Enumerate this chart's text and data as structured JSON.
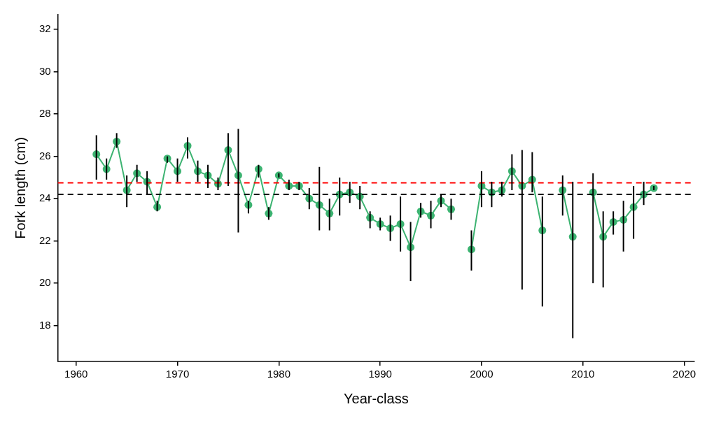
{
  "chart_data": {
    "type": "line",
    "xlabel": "Year-class",
    "ylabel": "Fork length (cm)",
    "x": [
      1962,
      1963,
      1964,
      1965,
      1966,
      1967,
      1968,
      1969,
      1970,
      1971,
      1972,
      1973,
      1974,
      1975,
      1976,
      1977,
      1978,
      1979,
      1980,
      1981,
      1982,
      1983,
      1984,
      1985,
      1986,
      1987,
      1988,
      1989,
      1990,
      1991,
      1992,
      1993,
      1994,
      1995,
      1996,
      1997,
      1998,
      1999,
      2000,
      2001,
      2002,
      2003,
      2004,
      2005,
      2006,
      2007,
      2008,
      2009,
      2010,
      2011,
      2012,
      2013,
      2014,
      2015,
      2016,
      2017
    ],
    "series": [
      {
        "color": "#3cb371",
        "values": [
          26.1,
          25.4,
          26.7,
          24.4,
          25.2,
          24.8,
          23.6,
          25.9,
          25.3,
          26.5,
          25.3,
          25.1,
          24.7,
          26.3,
          25.1,
          23.7,
          25.4,
          23.3,
          25.1,
          24.6,
          24.6,
          24.0,
          23.7,
          23.3,
          24.2,
          24.3,
          24.1,
          23.1,
          22.8,
          22.6,
          22.8,
          21.7,
          23.4,
          23.2,
          23.9,
          23.5,
          null,
          21.6,
          24.6,
          24.3,
          24.4,
          25.3,
          24.6,
          24.9,
          22.5,
          null,
          24.4,
          22.2,
          null,
          24.3,
          22.2,
          22.9,
          23.0,
          23.6,
          24.2,
          24.5
        ],
        "errors": [
          [
            24.9,
            27.0
          ],
          [
            24.9,
            25.9
          ],
          [
            26.4,
            27.1
          ],
          [
            23.6,
            25.1
          ],
          [
            24.8,
            25.6
          ],
          [
            24.2,
            25.3
          ],
          [
            23.4,
            23.9
          ],
          [
            25.7,
            26.0
          ],
          [
            24.8,
            25.9
          ],
          [
            25.9,
            26.9
          ],
          [
            24.8,
            25.8
          ],
          [
            24.5,
            25.6
          ],
          [
            24.4,
            25.0
          ],
          [
            24.6,
            27.1
          ],
          [
            22.4,
            27.3
          ],
          [
            23.3,
            23.9
          ],
          [
            25.0,
            25.6
          ],
          [
            23.0,
            23.6
          ],
          [
            25.0,
            25.2
          ],
          [
            24.4,
            24.9
          ],
          [
            24.4,
            24.8
          ],
          [
            23.5,
            24.5
          ],
          [
            22.5,
            25.5
          ],
          [
            22.5,
            24.0
          ],
          [
            23.2,
            25.0
          ],
          [
            23.8,
            24.8
          ],
          [
            23.5,
            24.6
          ],
          [
            22.6,
            23.4
          ],
          [
            22.5,
            23.1
          ],
          [
            22.0,
            23.2
          ],
          [
            21.5,
            24.1
          ],
          [
            20.1,
            22.9
          ],
          [
            23.1,
            23.8
          ],
          [
            22.6,
            23.9
          ],
          [
            23.6,
            24.2
          ],
          [
            23.0,
            24.0
          ],
          null,
          [
            20.6,
            22.5
          ],
          [
            23.6,
            25.3
          ],
          [
            23.6,
            24.8
          ],
          [
            24.1,
            24.8
          ],
          [
            24.4,
            26.1
          ],
          [
            19.7,
            26.3
          ],
          [
            24.3,
            26.2
          ],
          [
            18.9,
            24.1
          ],
          null,
          [
            23.2,
            25.1
          ],
          [
            17.4,
            24.8
          ],
          null,
          [
            20.0,
            25.2
          ],
          [
            19.8,
            23.4
          ],
          [
            22.3,
            23.4
          ],
          [
            21.5,
            23.9
          ],
          [
            22.1,
            24.6
          ],
          [
            23.7,
            24.8
          ],
          [
            24.4,
            24.6
          ]
        ]
      }
    ],
    "xlim": [
      1958.2,
      2021
    ],
    "xticks": [
      1960,
      1970,
      1980,
      1990,
      2000,
      2010,
      2020
    ],
    "ylim": [
      16.3,
      32.7
    ],
    "yticks": [
      18,
      20,
      22,
      24,
      26,
      28,
      30,
      32
    ],
    "ref_lines": [
      {
        "axis": "y",
        "value": 24.75,
        "color": "#ff0000",
        "line_style": "dashed"
      },
      {
        "axis": "y",
        "value": 24.2,
        "color": "#000000",
        "line_style": "dashed"
      }
    ],
    "grid": false,
    "legend": false,
    "marker": "circle",
    "line_style": "solid"
  }
}
